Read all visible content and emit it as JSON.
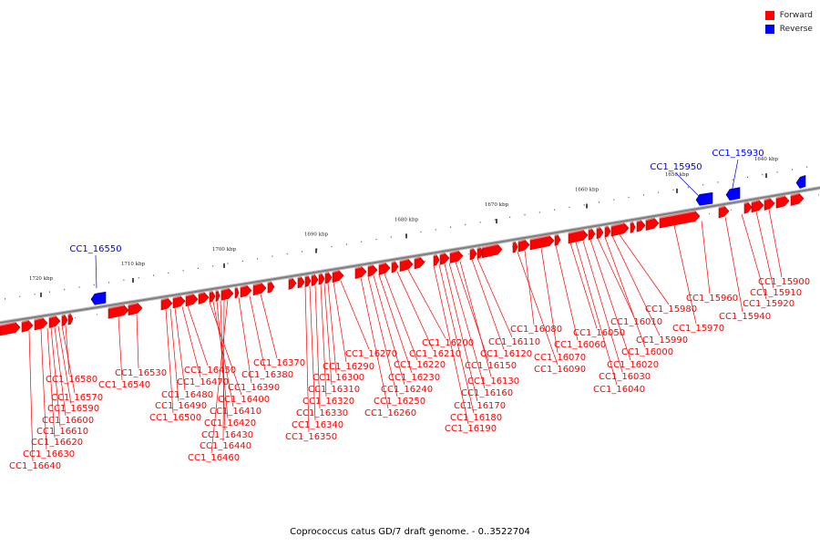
{
  "legend": {
    "forward": {
      "label": "Forward",
      "color": "#ff0000"
    },
    "reverse": {
      "label": "Reverse",
      "color": "#0000ff"
    }
  },
  "footer": "Coprococcus catus GD/7 draft genome. - 0..3522704",
  "colors": {
    "forward": "#ff0000",
    "reverse": "#0000ff",
    "backbone": "#808080",
    "tick": "#000000"
  },
  "kbp_ticks": [
    "1720 kbp",
    "1710 kbp",
    "1700 kbp",
    "1690 kbp",
    "1680 kbp",
    "1670 kbp",
    "1660 kbp",
    "1650 kbp",
    "1640 kbp"
  ],
  "reverse_genes": [
    "CC1_16550",
    "CC1_15950",
    "CC1_15930"
  ],
  "forward_genes": [
    "CC1_16640",
    "CC1_16630",
    "CC1_16620",
    "CC1_16610",
    "CC1_16600",
    "CC1_16590",
    "CC1_16570",
    "CC1_16580",
    "CC1_16540",
    "CC1_16530",
    "CC1_16500",
    "CC1_16490",
    "CC1_16480",
    "CC1_16470",
    "CC1_16460",
    "CC1_16450",
    "CC1_16440",
    "CC1_16430",
    "CC1_16420",
    "CC1_16410",
    "CC1_16400",
    "CC1_16390",
    "CC1_16380",
    "CC1_16370",
    "CC1_16350",
    "CC1_16340",
    "CC1_16330",
    "CC1_16320",
    "CC1_16310",
    "CC1_16300",
    "CC1_16290",
    "CC1_16270",
    "CC1_16260",
    "CC1_16250",
    "CC1_16240",
    "CC1_16230",
    "CC1_16220",
    "CC1_16210",
    "CC1_16200",
    "CC1_16190",
    "CC1_16180",
    "CC1_16170",
    "CC1_16160",
    "CC1_16150",
    "CC1_16130",
    "CC1_16120",
    "CC1_16110",
    "CC1_16090",
    "CC1_16080",
    "CC1_16070",
    "CC1_16060",
    "CC1_16050",
    "CC1_16040",
    "CC1_16030",
    "CC1_16020",
    "CC1_16010",
    "CC1_16000",
    "CC1_15990",
    "CC1_15980",
    "CC1_15970",
    "CC1_15960",
    "CC1_15940",
    "CC1_15920",
    "CC1_15910",
    "CC1_15900"
  ]
}
